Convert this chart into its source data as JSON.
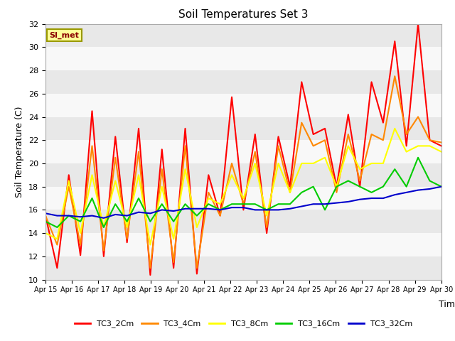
{
  "title": "Soil Temperatures Set 3",
  "xlabel": "Time",
  "ylabel": "Soil Temperature (C)",
  "ylim": [
    10,
    32
  ],
  "yticks": [
    10,
    12,
    14,
    16,
    18,
    20,
    22,
    24,
    26,
    28,
    30,
    32
  ],
  "annotation": "SI_met",
  "series": {
    "TC3_2Cm": {
      "color": "#ff0000",
      "data": [
        15.5,
        11.0,
        19.0,
        12.1,
        24.5,
        12.0,
        22.3,
        13.2,
        23.0,
        10.4,
        21.2,
        11.0,
        23.0,
        10.5,
        19.0,
        15.5,
        25.7,
        16.0,
        22.5,
        14.0,
        22.3,
        18.0,
        27.0,
        22.5,
        23.0,
        18.0,
        24.2,
        18.0,
        27.0,
        23.5,
        30.5,
        21.5,
        32.0,
        22.0,
        21.5
      ]
    },
    "TC3_4Cm": {
      "color": "#ff8800",
      "data": [
        15.5,
        13.0,
        18.0,
        13.0,
        21.5,
        12.5,
        20.5,
        13.5,
        21.0,
        11.0,
        19.5,
        11.5,
        21.5,
        11.0,
        17.5,
        15.5,
        20.0,
        16.5,
        21.0,
        14.5,
        21.5,
        17.5,
        23.5,
        21.5,
        22.0,
        17.5,
        22.5,
        18.5,
        22.5,
        22.0,
        27.5,
        22.5,
        24.0,
        22.0,
        21.8
      ]
    },
    "TC3_8Cm": {
      "color": "#ffff00",
      "data": [
        14.0,
        13.5,
        18.5,
        14.0,
        19.0,
        14.5,
        18.5,
        14.5,
        19.0,
        13.0,
        18.0,
        13.5,
        19.5,
        14.5,
        17.0,
        16.5,
        19.0,
        17.0,
        20.0,
        15.5,
        20.0,
        17.5,
        20.0,
        20.0,
        20.5,
        18.0,
        21.5,
        19.5,
        20.0,
        20.0,
        23.0,
        21.0,
        21.5,
        21.5,
        21.0
      ]
    },
    "TC3_16Cm": {
      "color": "#00cc00",
      "data": [
        15.0,
        14.5,
        15.5,
        15.0,
        17.0,
        14.5,
        16.5,
        15.0,
        17.0,
        15.0,
        16.5,
        15.0,
        16.5,
        15.5,
        16.5,
        16.0,
        16.5,
        16.5,
        16.5,
        16.0,
        16.5,
        16.5,
        17.5,
        18.0,
        16.0,
        18.0,
        18.5,
        18.0,
        17.5,
        18.0,
        19.5,
        18.0,
        20.5,
        18.5,
        18.0
      ]
    },
    "TC3_32Cm": {
      "color": "#0000cc",
      "data": [
        15.7,
        15.5,
        15.5,
        15.4,
        15.5,
        15.3,
        15.6,
        15.5,
        15.8,
        15.7,
        16.0,
        15.9,
        16.1,
        16.1,
        16.1,
        16.0,
        16.2,
        16.2,
        16.0,
        16.0,
        16.0,
        16.1,
        16.3,
        16.5,
        16.5,
        16.6,
        16.7,
        16.9,
        17.0,
        17.0,
        17.3,
        17.5,
        17.7,
        17.8,
        18.0
      ]
    }
  },
  "x_tick_labels": [
    "Apr 15",
    "Apr 16",
    "Apr 17",
    "Apr 18",
    "Apr 19",
    "Apr 20",
    "Apr 21",
    "Apr 22",
    "Apr 23",
    "Apr 24",
    "Apr 25",
    "Apr 26",
    "Apr 27",
    "Apr 28",
    "Apr 29",
    "Apr 30"
  ],
  "fig_bg_color": "#ffffff",
  "plot_bg_light": "#f8f8f8",
  "plot_bg_dark": "#e8e8e8",
  "legend_entries": [
    "TC3_2Cm",
    "TC3_4Cm",
    "TC3_8Cm",
    "TC3_16Cm",
    "TC3_32Cm"
  ],
  "legend_colors": [
    "#ff0000",
    "#ff8800",
    "#ffff00",
    "#00cc00",
    "#0000cc"
  ]
}
